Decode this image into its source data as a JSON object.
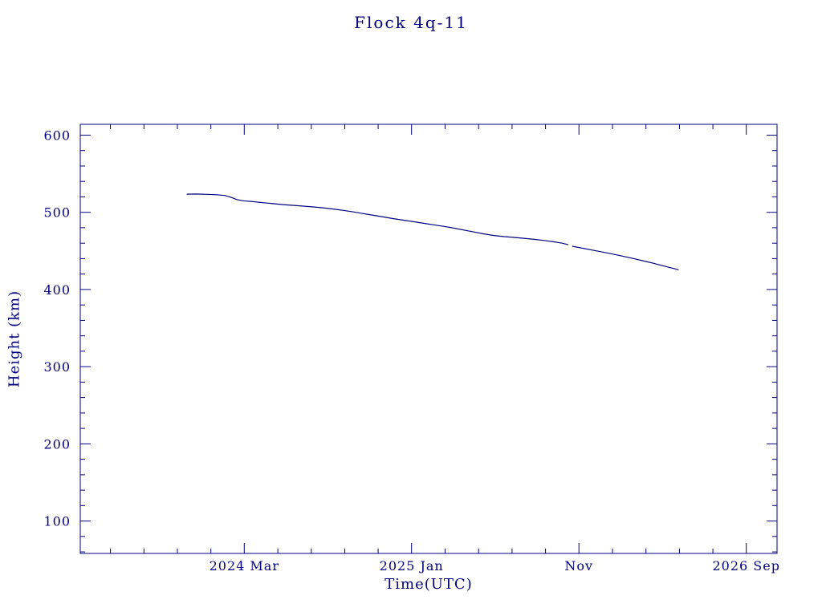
{
  "colors": {
    "ink": "#000080",
    "background": "#ffffff"
  },
  "chart_data": {
    "type": "line",
    "title": "Flock 4q-11",
    "xlabel": "Time(UTC)",
    "ylabel": "Height (km)",
    "xlim": [
      2023.35,
      2026.82
    ],
    "ylim": [
      58,
      614
    ],
    "x_ticks": [
      {
        "value": 2024.1667,
        "label": "2024 Mar"
      },
      {
        "value": 2025.0,
        "label": "2025 Jan"
      },
      {
        "value": 2025.8333,
        "label": "Nov"
      },
      {
        "value": 2026.6667,
        "label": "2026 Sep"
      }
    ],
    "x_minor_step": 0.1666667,
    "y_ticks": [
      {
        "value": 100,
        "label": "100"
      },
      {
        "value": 200,
        "label": "200"
      },
      {
        "value": 300,
        "label": "300"
      },
      {
        "value": 400,
        "label": "400"
      },
      {
        "value": 500,
        "label": "500"
      },
      {
        "value": 600,
        "label": "600"
      }
    ],
    "y_minor_step": 20,
    "line_color": "#000080",
    "grid": false,
    "legend": "none",
    "series": [
      {
        "name": "orbital height",
        "points": [
          [
            2023.88,
            523.5
          ],
          [
            2023.93,
            523.7
          ],
          [
            2023.98,
            523.3
          ],
          [
            2024.03,
            522.8
          ],
          [
            2024.07,
            521.8
          ],
          [
            2024.1,
            519.5
          ],
          [
            2024.13,
            516.5
          ],
          [
            2024.16,
            515.0
          ],
          [
            2024.21,
            513.8
          ],
          [
            2024.26,
            512.5
          ],
          [
            2024.31,
            511.2
          ],
          [
            2024.36,
            510.0
          ],
          [
            2024.41,
            509.0
          ],
          [
            2024.46,
            508.0
          ],
          [
            2024.51,
            507.0
          ],
          [
            2024.56,
            505.8
          ],
          [
            2024.61,
            504.3
          ],
          [
            2024.66,
            502.5
          ],
          [
            2024.71,
            500.5
          ],
          [
            2024.76,
            498.3
          ],
          [
            2024.81,
            496.2
          ],
          [
            2024.86,
            494.0
          ],
          [
            2024.91,
            491.8
          ],
          [
            2024.96,
            489.8
          ],
          [
            2025.01,
            487.8
          ],
          [
            2025.06,
            485.8
          ],
          [
            2025.11,
            483.8
          ],
          [
            2025.16,
            481.8
          ],
          [
            2025.21,
            479.5
          ],
          [
            2025.26,
            477.0
          ],
          [
            2025.31,
            474.5
          ],
          [
            2025.36,
            472.0
          ],
          [
            2025.41,
            470.0
          ],
          [
            2025.46,
            468.5
          ],
          [
            2025.51,
            467.5
          ],
          [
            2025.56,
            466.3
          ],
          [
            2025.61,
            465.0
          ],
          [
            2025.66,
            463.5
          ],
          [
            2025.71,
            461.8
          ],
          [
            2025.75,
            460.0
          ],
          [
            2025.78,
            458.0
          ],
          [
            2025.79,
            null
          ],
          [
            2025.8,
            456.0
          ],
          [
            2025.85,
            453.5
          ],
          [
            2025.9,
            451.0
          ],
          [
            2025.95,
            448.5
          ],
          [
            2026.0,
            446.0
          ],
          [
            2026.05,
            443.2
          ],
          [
            2026.1,
            440.3
          ],
          [
            2026.15,
            437.3
          ],
          [
            2026.2,
            434.3
          ],
          [
            2026.24,
            431.5
          ],
          [
            2026.28,
            428.8
          ],
          [
            2026.31,
            426.8
          ],
          [
            2026.33,
            425.5
          ]
        ]
      }
    ]
  }
}
